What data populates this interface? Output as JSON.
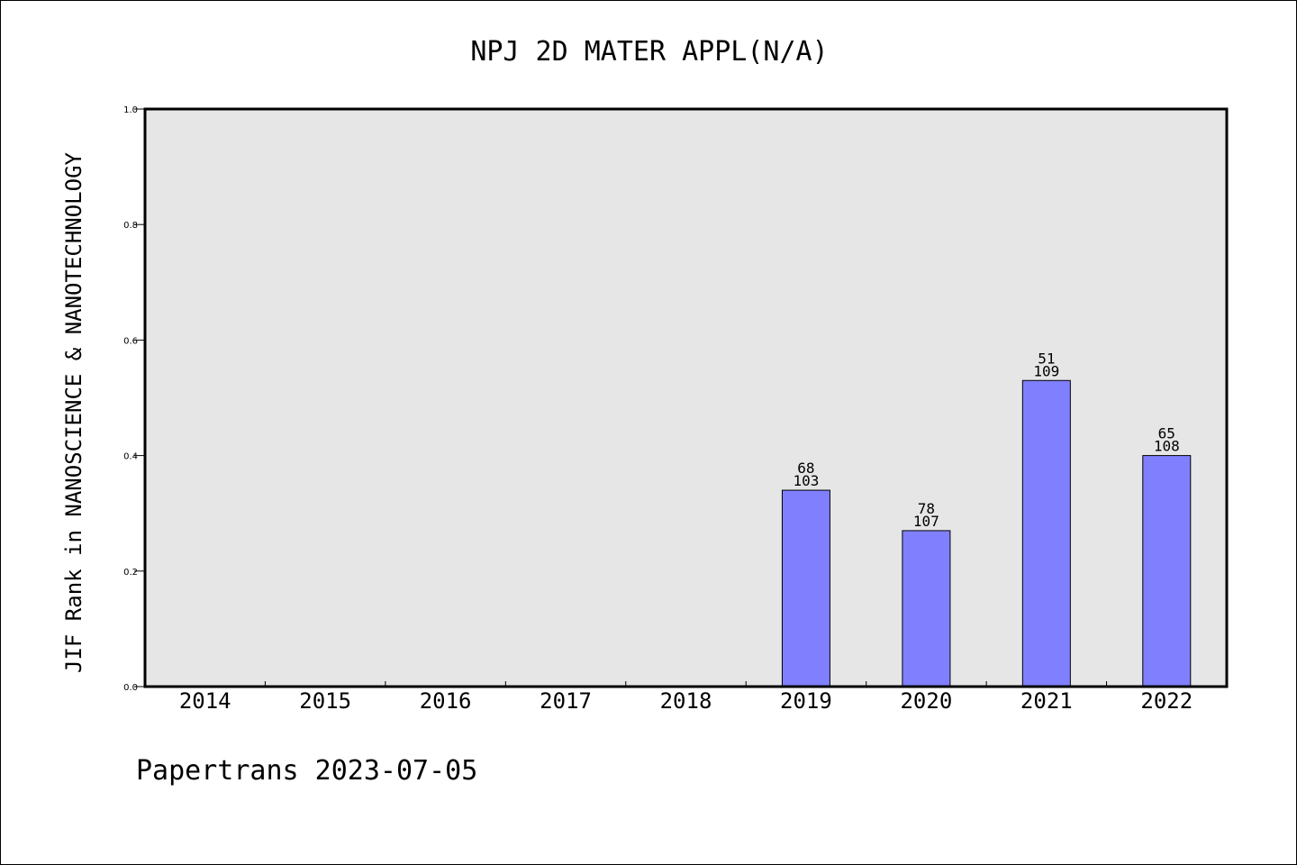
{
  "chart_data": {
    "type": "bar",
    "title": "NPJ 2D MATER APPL(N/A)",
    "xlabel": "",
    "ylabel": "JIF Rank in NANOSCIENCE & NANOTECHNOLOGY",
    "ylim": [
      0,
      1
    ],
    "yticks": [
      "0.0",
      "0.2",
      "0.4",
      "0.6",
      "0.8",
      "1.0"
    ],
    "grid": false,
    "categories": [
      "2014",
      "2015",
      "2016",
      "2017",
      "2018",
      "2019",
      "2020",
      "2021",
      "2022"
    ],
    "values": [
      null,
      null,
      null,
      null,
      null,
      0.34,
      0.27,
      0.53,
      0.4
    ],
    "labels": [
      null,
      null,
      null,
      null,
      null,
      {
        "rank": "68",
        "total": "103"
      },
      {
        "rank": "78",
        "total": "107"
      },
      {
        "rank": "51",
        "total": "109"
      },
      {
        "rank": "65",
        "total": "108"
      }
    ],
    "colors": {
      "bar": "#8080ff",
      "plot_background": "#e6e6e6",
      "axes": "#000000"
    }
  },
  "footer": "Papertrans 2023-07-05"
}
